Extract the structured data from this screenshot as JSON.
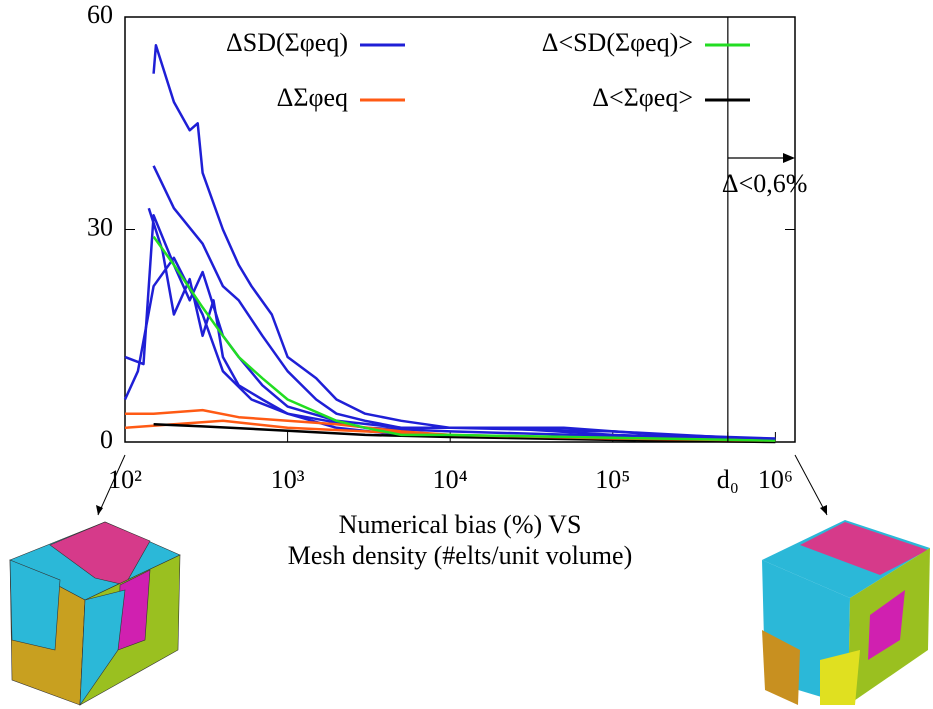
{
  "chart_data": {
    "type": "line",
    "xlabel": [
      "Numerical bias (%) VS",
      "Mesh density (#elts/unit volume)"
    ],
    "log_x": true,
    "xlim": [
      100,
      1320000
    ],
    "xticks": [
      {
        "value": 100,
        "label": "10²"
      },
      {
        "value": 1000,
        "label": "10³"
      },
      {
        "value": 10000,
        "label": "10⁴"
      },
      {
        "value": 100000,
        "label": "10⁵"
      },
      {
        "value": 510000,
        "label": "d₀"
      },
      {
        "value": 1000000,
        "label": "10⁶"
      }
    ],
    "ylim": [
      0,
      60
    ],
    "yticks": [
      0,
      30,
      60
    ],
    "annotation": {
      "text": "Δ<0,6%",
      "from_tick": 4
    },
    "series": [
      {
        "name": "ΔSD(Σφeq)",
        "color": "#1f1fd6",
        "x": [
          150,
          155,
          200,
          250,
          280,
          300,
          400,
          500,
          600,
          800,
          1000,
          1500,
          2000,
          3000,
          5000,
          10000,
          50000,
          200000,
          1000000
        ],
        "values": [
          52,
          56,
          48,
          44,
          45,
          38,
          30,
          25,
          22,
          18,
          12,
          9,
          6,
          4,
          3,
          2,
          2,
          1,
          0.5
        ]
      },
      {
        "name": "Δ<SD(Σφeq)>",
        "color": "#22dd22",
        "x": [
          150,
          200,
          300,
          400,
          500,
          700,
          1000,
          2000,
          3000,
          5000,
          10000,
          100000,
          1000000
        ],
        "values": [
          29,
          25,
          19,
          15,
          12,
          9,
          6,
          3,
          2,
          1,
          1,
          0.6,
          0.2
        ]
      },
      {
        "name": "ΔΣφeq",
        "color": "#ff5a14",
        "x": [
          100,
          150,
          300,
          500,
          1000,
          2000,
          5000,
          10000,
          100000,
          1000000
        ],
        "values": [
          4,
          4,
          4.5,
          3.5,
          3,
          2.5,
          1.5,
          1,
          0.5,
          0.2
        ]
      },
      {
        "name": "Δ<Σφeq>",
        "color": "#000000",
        "x": [
          150,
          300,
          1000,
          3000,
          10000,
          100000,
          1000000
        ],
        "values": [
          2.5,
          2.2,
          1.6,
          1,
          0.7,
          0.3,
          0
        ]
      },
      {
        "color": "#1f1fd6",
        "x": [
          150,
          200,
          300,
          400,
          500,
          700,
          1000,
          1500,
          2000,
          3000,
          5000,
          10000,
          100000,
          1000000
        ],
        "values": [
          39,
          33,
          28,
          22,
          20,
          15,
          10,
          6,
          4,
          3,
          2,
          2,
          1.5,
          0.3
        ]
      },
      {
        "color": "#1f1fd6",
        "x": [
          100,
          130,
          150,
          200,
          250,
          300,
          400,
          500,
          700,
          1000,
          2000,
          5000,
          20000,
          100000,
          1000000
        ],
        "values": [
          12,
          11,
          32,
          25,
          20,
          24,
          15,
          12,
          8,
          5,
          3,
          2,
          2,
          1,
          0.3
        ]
      },
      {
        "color": "#1f1fd6",
        "x": [
          140,
          170,
          200,
          250,
          300,
          350,
          400,
          500,
          700,
          1000,
          3000,
          10000,
          1000000
        ],
        "values": [
          33,
          27,
          18,
          23,
          15,
          20,
          12,
          8,
          6,
          4,
          2,
          1.5,
          0.2
        ]
      },
      {
        "color": "#1f1fd6",
        "x": [
          100,
          120,
          150,
          200,
          300,
          400,
          600,
          1000,
          2000,
          5000,
          1000000
        ],
        "values": [
          6,
          10,
          22,
          26,
          18,
          10,
          6,
          4,
          2,
          1,
          0.1
        ]
      },
      {
        "color": "#ff5a14",
        "x": [
          100,
          200,
          400,
          1000,
          3000,
          10000
        ],
        "values": [
          2,
          2.5,
          3,
          2,
          1.5,
          1
        ]
      }
    ]
  }
}
